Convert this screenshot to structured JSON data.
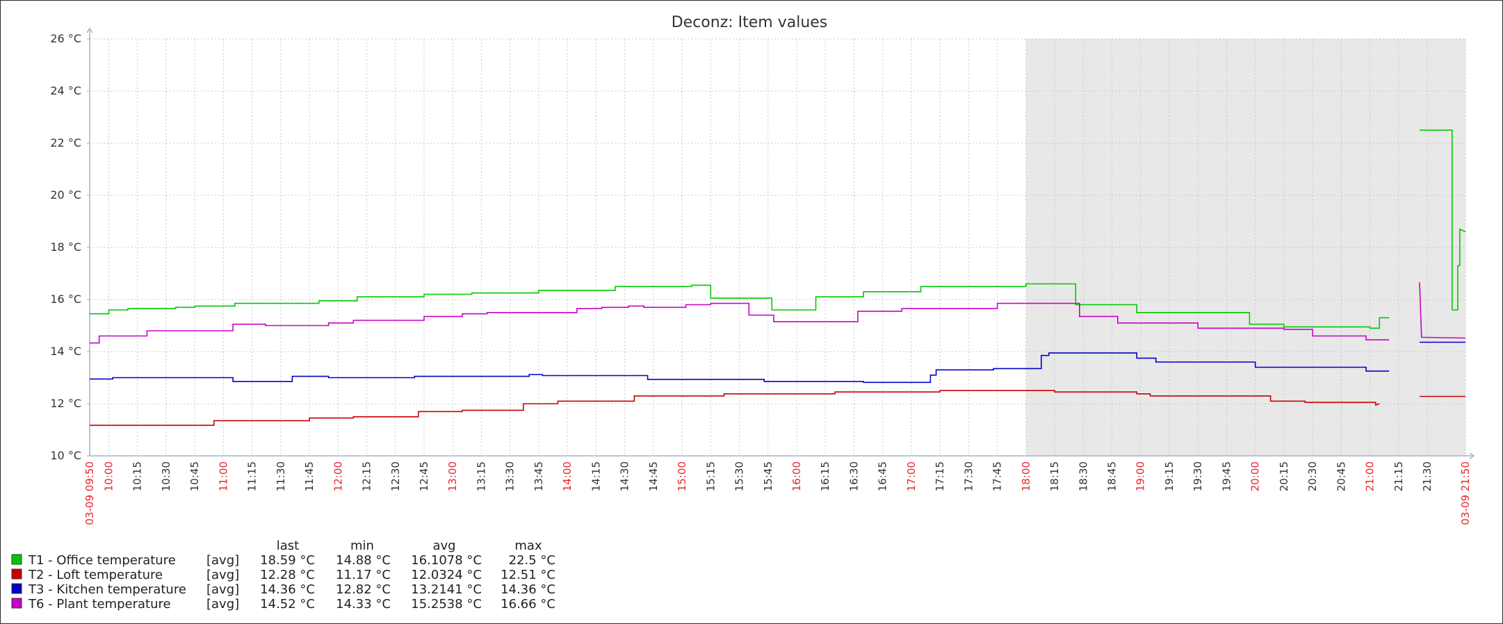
{
  "chart_data": {
    "type": "line",
    "title": "Deconz: Item values",
    "y_unit": "°C",
    "ylim": [
      10,
      26
    ],
    "y_ticks": [
      "26 °C",
      "24 °C",
      "22 °C",
      "20 °C",
      "18 °C",
      "16 °C",
      "14 °C",
      "12 °C",
      "10 °C"
    ],
    "x_range": [
      "09:50",
      "21:50"
    ],
    "x_tick_labels": [
      "03-09 09:50",
      "10:00",
      "10:15",
      "10:30",
      "10:45",
      "11:00",
      "11:15",
      "11:30",
      "11:45",
      "12:00",
      "12:15",
      "12:30",
      "12:45",
      "13:00",
      "13:15",
      "13:30",
      "13:45",
      "14:00",
      "14:15",
      "14:30",
      "14:45",
      "15:00",
      "15:15",
      "15:30",
      "15:45",
      "16:00",
      "16:15",
      "16:30",
      "16:45",
      "17:00",
      "17:15",
      "17:30",
      "17:45",
      "18:00",
      "18:15",
      "18:30",
      "18:45",
      "19:00",
      "19:15",
      "19:30",
      "19:45",
      "20:00",
      "20:15",
      "20:30",
      "20:45",
      "21:00",
      "21:15",
      "21:30",
      "03-09 21:50"
    ],
    "highlight_ticks": [
      "03-09 09:50",
      "10:00",
      "11:00",
      "12:00",
      "13:00",
      "14:00",
      "15:00",
      "16:00",
      "17:00",
      "18:00",
      "19:00",
      "20:00",
      "21:00",
      "03-09 21:50"
    ],
    "shaded_period": [
      "18:00",
      "21:50"
    ],
    "grid": true,
    "legend_position": "bottom-left",
    "legend_columns": [
      "last",
      "min",
      "avg",
      "max"
    ],
    "series": [
      {
        "name": "T1 - Office temperature",
        "func": "[avg]",
        "color": "#00c800",
        "last": "18.59 °C",
        "min": "14.88 °C",
        "avg": "16.1078 °C",
        "max": "22.5 °C",
        "segments": [
          [
            [
              "09:50",
              15.45
            ],
            [
              "10:00",
              15.45
            ],
            [
              "10:00",
              15.6
            ],
            [
              "10:10",
              15.6
            ],
            [
              "10:10",
              15.65
            ],
            [
              "10:35",
              15.65
            ],
            [
              "10:35",
              15.7
            ],
            [
              "10:45",
              15.7
            ],
            [
              "10:45",
              15.75
            ],
            [
              "11:06",
              15.75
            ],
            [
              "11:06",
              15.85
            ],
            [
              "11:50",
              15.85
            ],
            [
              "11:50",
              15.95
            ],
            [
              "12:10",
              15.95
            ],
            [
              "12:10",
              16.1
            ],
            [
              "12:45",
              16.1
            ],
            [
              "12:45",
              16.2
            ],
            [
              "13:10",
              16.2
            ],
            [
              "13:10",
              16.25
            ],
            [
              "13:45",
              16.25
            ],
            [
              "13:45",
              16.35
            ],
            [
              "14:25",
              16.35
            ],
            [
              "14:25",
              16.5
            ],
            [
              "15:05",
              16.5
            ],
            [
              "15:05",
              16.55
            ],
            [
              "15:15",
              16.55
            ],
            [
              "15:15",
              16.05
            ],
            [
              "15:47",
              16.05
            ],
            [
              "15:47",
              15.6
            ],
            [
              "16:10",
              15.6
            ],
            [
              "16:10",
              16.1
            ],
            [
              "16:35",
              16.1
            ],
            [
              "16:35",
              16.3
            ],
            [
              "17:05",
              16.3
            ],
            [
              "17:05",
              16.5
            ],
            [
              "18:00",
              16.5
            ],
            [
              "18:00",
              16.6
            ],
            [
              "18:26",
              16.6
            ],
            [
              "18:26",
              15.8
            ],
            [
              "18:58",
              15.8
            ],
            [
              "18:58",
              15.5
            ],
            [
              "19:57",
              15.5
            ],
            [
              "19:57",
              15.05
            ],
            [
              "20:15",
              15.05
            ],
            [
              "20:15",
              14.95
            ],
            [
              "21:00",
              14.95
            ],
            [
              "21:00",
              14.9
            ],
            [
              "21:05",
              14.9
            ],
            [
              "21:05",
              15.3
            ],
            [
              "21:10",
              15.3
            ]
          ],
          [
            [
              "21:26",
              22.5
            ],
            [
              "21:43",
              22.5
            ],
            [
              "21:43",
              15.6
            ],
            [
              "21:46",
              15.6
            ],
            [
              "21:46",
              17.3
            ],
            [
              "21:47",
              17.3
            ],
            [
              "21:47",
              18.7
            ],
            [
              "21:50",
              18.6
            ]
          ]
        ]
      },
      {
        "name": "T2 - Loft temperature",
        "func": "[avg]",
        "color": "#c80000",
        "last": "12.28 °C",
        "min": "11.17 °C",
        "avg": "12.0324 °C",
        "max": "12.51 °C",
        "segments": [
          [
            [
              "09:50",
              11.17
            ],
            [
              "10:55",
              11.17
            ],
            [
              "10:55",
              11.35
            ],
            [
              "11:45",
              11.35
            ],
            [
              "11:45",
              11.45
            ],
            [
              "12:08",
              11.45
            ],
            [
              "12:08",
              11.5
            ],
            [
              "12:42",
              11.5
            ],
            [
              "12:42",
              11.7
            ],
            [
              "13:05",
              11.7
            ],
            [
              "13:05",
              11.75
            ],
            [
              "13:37",
              11.75
            ],
            [
              "13:37",
              12.0
            ],
            [
              "13:55",
              12.0
            ],
            [
              "13:55",
              12.1
            ],
            [
              "14:35",
              12.1
            ],
            [
              "14:35",
              12.3
            ],
            [
              "15:22",
              12.3
            ],
            [
              "15:22",
              12.38
            ],
            [
              "16:20",
              12.38
            ],
            [
              "16:20",
              12.45
            ],
            [
              "17:15",
              12.45
            ],
            [
              "17:15",
              12.51
            ],
            [
              "18:15",
              12.51
            ],
            [
              "18:15",
              12.45
            ],
            [
              "18:58",
              12.45
            ],
            [
              "18:58",
              12.38
            ],
            [
              "19:05",
              12.38
            ],
            [
              "19:05",
              12.3
            ],
            [
              "20:08",
              12.3
            ],
            [
              "20:08",
              12.1
            ],
            [
              "20:26",
              12.1
            ],
            [
              "20:26",
              12.05
            ],
            [
              "21:03",
              12.05
            ],
            [
              "21:03",
              11.95
            ],
            [
              "21:05",
              12.0
            ]
          ],
          [
            [
              "21:26",
              12.28
            ],
            [
              "21:50",
              12.28
            ]
          ]
        ]
      },
      {
        "name": "T3 - Kitchen temperature",
        "func": "[avg]",
        "color": "#0000c8",
        "last": "14.36 °C",
        "min": "12.82 °C",
        "avg": "13.2141 °C",
        "max": "14.36 °C",
        "segments": [
          [
            [
              "09:50",
              12.95
            ],
            [
              "10:02",
              12.95
            ],
            [
              "10:02",
              13.0
            ],
            [
              "11:05",
              13.0
            ],
            [
              "11:05",
              12.85
            ],
            [
              "11:36",
              12.85
            ],
            [
              "11:36",
              13.05
            ],
            [
              "11:55",
              13.05
            ],
            [
              "11:55",
              13.0
            ],
            [
              "12:40",
              13.0
            ],
            [
              "12:40",
              13.05
            ],
            [
              "13:40",
              13.05
            ],
            [
              "13:40",
              13.12
            ],
            [
              "13:47",
              13.12
            ],
            [
              "13:47",
              13.08
            ],
            [
              "14:42",
              13.08
            ],
            [
              "14:42",
              12.93
            ],
            [
              "15:43",
              12.93
            ],
            [
              "15:43",
              12.85
            ],
            [
              "16:35",
              12.85
            ],
            [
              "16:35",
              12.82
            ],
            [
              "17:10",
              12.82
            ],
            [
              "17:10",
              13.1
            ],
            [
              "17:13",
              13.1
            ],
            [
              "17:13",
              13.3
            ],
            [
              "17:43",
              13.3
            ],
            [
              "17:43",
              13.35
            ],
            [
              "18:08",
              13.35
            ],
            [
              "18:08",
              13.85
            ],
            [
              "18:12",
              13.85
            ],
            [
              "18:12",
              13.95
            ],
            [
              "18:58",
              13.95
            ],
            [
              "18:58",
              13.75
            ],
            [
              "19:08",
              13.75
            ],
            [
              "19:08",
              13.6
            ],
            [
              "20:00",
              13.6
            ],
            [
              "20:00",
              13.4
            ],
            [
              "20:58",
              13.4
            ],
            [
              "20:58",
              13.25
            ],
            [
              "21:10",
              13.25
            ]
          ],
          [
            [
              "21:26",
              14.36
            ],
            [
              "21:50",
              14.36
            ]
          ]
        ]
      },
      {
        "name": "T6 - Plant temperature",
        "func": "[avg]",
        "color": "#c800c8",
        "last": "14.52 °C",
        "min": "14.33 °C",
        "avg": "15.2538 °C",
        "max": "16.66 °C",
        "segments": [
          [
            [
              "09:50",
              14.33
            ],
            [
              "09:55",
              14.33
            ],
            [
              "09:55",
              14.6
            ],
            [
              "10:20",
              14.6
            ],
            [
              "10:20",
              14.8
            ],
            [
              "11:05",
              14.8
            ],
            [
              "11:05",
              15.05
            ],
            [
              "11:22",
              15.05
            ],
            [
              "11:22",
              15.0
            ],
            [
              "11:55",
              15.0
            ],
            [
              "11:55",
              15.1
            ],
            [
              "12:08",
              15.1
            ],
            [
              "12:08",
              15.2
            ],
            [
              "12:45",
              15.2
            ],
            [
              "12:45",
              15.35
            ],
            [
              "13:05",
              15.35
            ],
            [
              "13:05",
              15.45
            ],
            [
              "13:18",
              15.45
            ],
            [
              "13:18",
              15.5
            ],
            [
              "14:05",
              15.5
            ],
            [
              "14:05",
              15.65
            ],
            [
              "14:18",
              15.65
            ],
            [
              "14:18",
              15.7
            ],
            [
              "14:32",
              15.7
            ],
            [
              "14:32",
              15.75
            ],
            [
              "14:40",
              15.75
            ],
            [
              "14:40",
              15.7
            ],
            [
              "15:02",
              15.7
            ],
            [
              "15:02",
              15.8
            ],
            [
              "15:15",
              15.8
            ],
            [
              "15:15",
              15.85
            ],
            [
              "15:35",
              15.85
            ],
            [
              "15:35",
              15.4
            ],
            [
              "15:48",
              15.4
            ],
            [
              "15:48",
              15.15
            ],
            [
              "16:32",
              15.15
            ],
            [
              "16:32",
              15.55
            ],
            [
              "16:55",
              15.55
            ],
            [
              "16:55",
              15.65
            ],
            [
              "17:45",
              15.65
            ],
            [
              "17:45",
              15.85
            ],
            [
              "18:28",
              15.85
            ],
            [
              "18:28",
              15.35
            ],
            [
              "18:48",
              15.35
            ],
            [
              "18:48",
              15.1
            ],
            [
              "19:30",
              15.1
            ],
            [
              "19:30",
              14.9
            ],
            [
              "20:15",
              14.9
            ],
            [
              "20:15",
              14.85
            ],
            [
              "20:30",
              14.85
            ],
            [
              "20:30",
              14.6
            ],
            [
              "20:58",
              14.6
            ],
            [
              "20:58",
              14.45
            ],
            [
              "21:10",
              14.45
            ]
          ],
          [
            [
              "21:26",
              16.66
            ],
            [
              "21:27",
              14.55
            ],
            [
              "21:50",
              14.52
            ]
          ]
        ]
      }
    ]
  },
  "colors": {
    "axis": "#9fb3c8",
    "grid": "#c8c8c8",
    "shade": "#e8e8e8",
    "highlight_tick": "#e8242a",
    "normal_tick": "#333333"
  }
}
